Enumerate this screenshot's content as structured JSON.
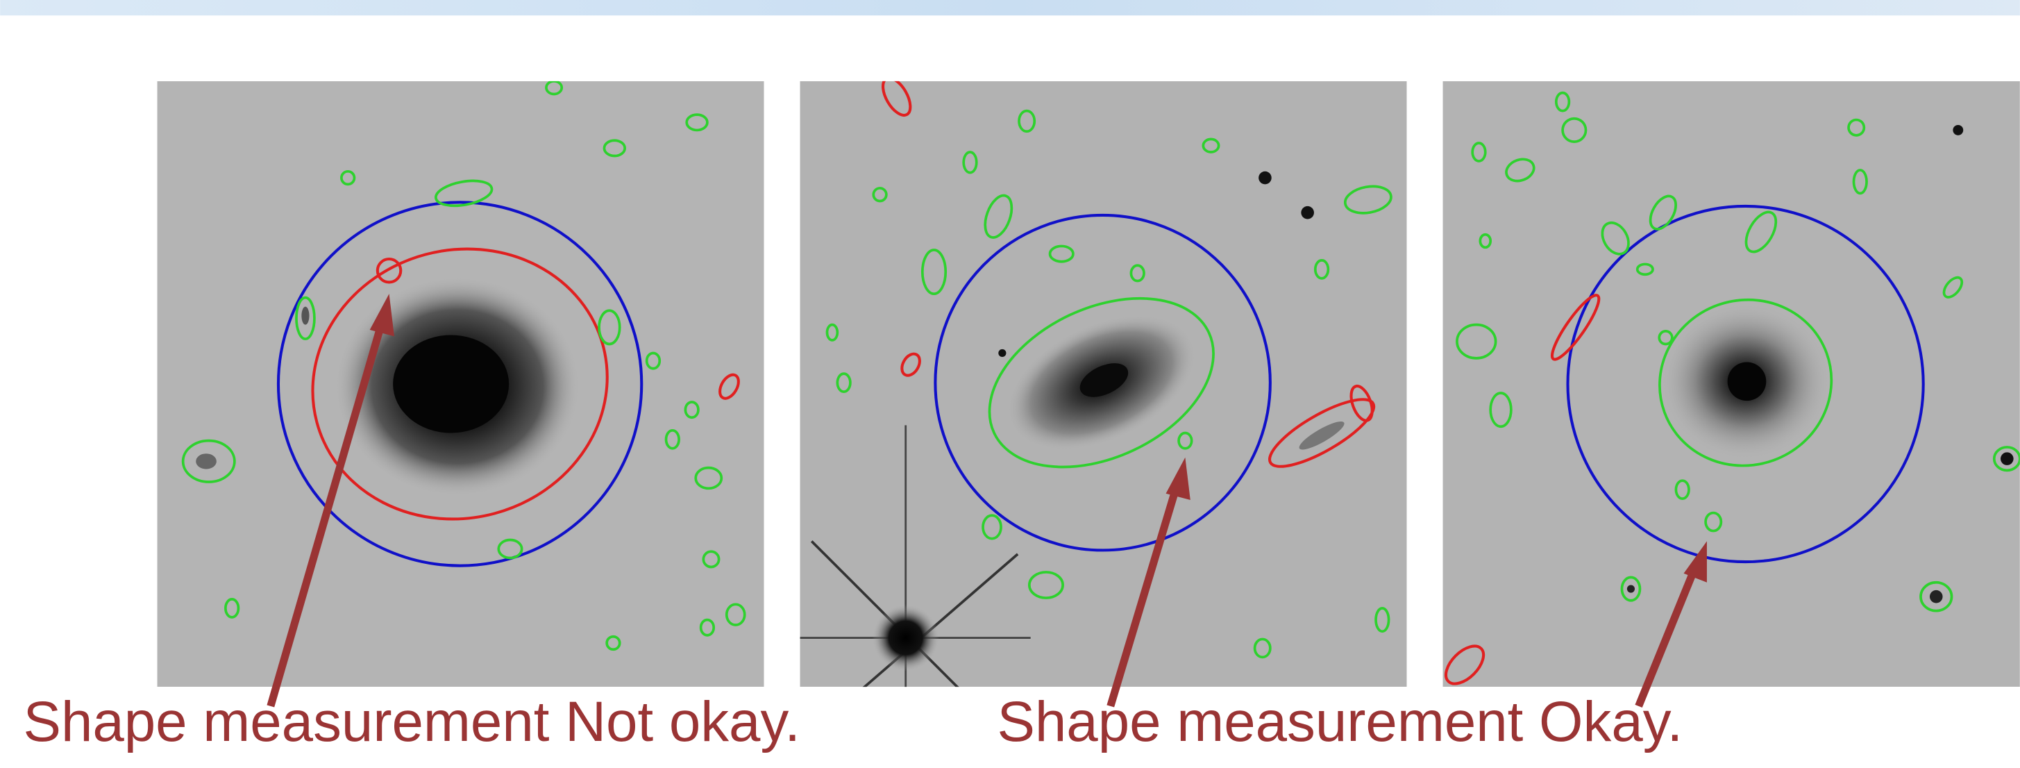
{
  "captions": {
    "left": "Shape measurement Not okay.",
    "right": "Shape measurement Okay."
  }
}
